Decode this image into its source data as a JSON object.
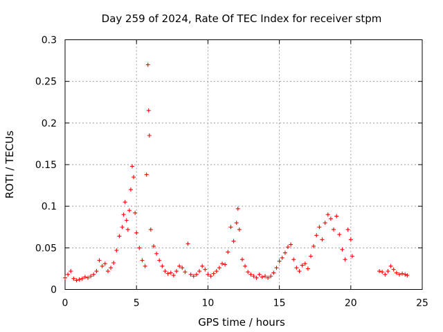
{
  "chart_data": {
    "type": "scatter",
    "title": "Day 259 of 2024, Rate Of TEC Index for receiver stpm",
    "xlabel": "GPS time / hours",
    "ylabel": "ROTI / TECUs",
    "xlim": [
      0,
      25
    ],
    "ylim": [
      0,
      0.3
    ],
    "xticks": [
      "0",
      "5",
      "10",
      "15",
      "20",
      "25"
    ],
    "yticks": [
      "0",
      "0.05",
      "0.1",
      "0.15",
      "0.2",
      "0.25",
      "0.3"
    ],
    "grid": true,
    "legend": "none",
    "marker": "+",
    "color": "#ff0000",
    "series": [
      {
        "x": [
          0.0,
          0.2,
          0.4,
          0.6,
          0.8,
          1.0,
          1.2,
          1.4,
          1.6,
          1.8,
          2.0,
          2.2,
          2.4,
          2.6,
          2.8,
          3.0,
          3.2,
          3.4,
          3.6,
          3.8,
          4.0,
          4.1,
          4.2,
          4.3,
          4.4,
          4.5,
          4.6,
          4.7,
          4.8,
          4.9,
          5.0,
          5.2,
          5.4,
          5.6,
          5.7,
          5.8,
          5.85,
          5.9,
          6.0,
          6.2,
          6.4,
          6.6,
          6.8,
          7.0,
          7.2,
          7.4,
          7.6,
          7.8,
          8.0,
          8.2,
          8.4,
          8.6,
          8.8,
          9.0,
          9.2,
          9.4,
          9.6,
          9.8,
          10.0,
          10.2,
          10.4,
          10.6,
          10.8,
          11.0,
          11.2,
          11.4,
          11.6,
          11.8,
          12.0,
          12.1,
          12.2,
          12.4,
          12.6,
          12.8,
          13.0,
          13.2,
          13.4,
          13.6,
          13.8,
          14.0,
          14.2,
          14.4,
          14.6,
          14.8,
          15.0,
          15.2,
          15.4,
          15.6,
          15.8,
          16.0,
          16.2,
          16.4,
          16.6,
          16.8,
          17.0,
          17.2,
          17.4,
          17.6,
          17.8,
          18.0,
          18.2,
          18.4,
          18.6,
          18.8,
          19.0,
          19.2,
          19.4,
          19.6,
          19.8,
          20.0,
          20.1,
          22.0,
          22.2,
          22.4,
          22.6,
          22.8,
          23.0,
          23.2,
          23.4,
          23.6,
          23.8,
          23.95
        ],
        "y": [
          0.014,
          0.018,
          0.022,
          0.013,
          0.011,
          0.012,
          0.013,
          0.015,
          0.014,
          0.016,
          0.018,
          0.022,
          0.035,
          0.028,
          0.031,
          0.022,
          0.026,
          0.032,
          0.047,
          0.064,
          0.075,
          0.09,
          0.105,
          0.083,
          0.072,
          0.095,
          0.12,
          0.148,
          0.135,
          0.092,
          0.068,
          0.05,
          0.035,
          0.028,
          0.138,
          0.27,
          0.215,
          0.185,
          0.072,
          0.052,
          0.043,
          0.035,
          0.028,
          0.022,
          0.019,
          0.02,
          0.017,
          0.022,
          0.028,
          0.026,
          0.021,
          0.055,
          0.018,
          0.016,
          0.018,
          0.022,
          0.028,
          0.024,
          0.018,
          0.016,
          0.019,
          0.022,
          0.026,
          0.031,
          0.03,
          0.045,
          0.075,
          0.058,
          0.08,
          0.097,
          0.072,
          0.036,
          0.028,
          0.021,
          0.018,
          0.016,
          0.014,
          0.018,
          0.015,
          0.016,
          0.014,
          0.016,
          0.02,
          0.026,
          0.034,
          0.038,
          0.044,
          0.051,
          0.054,
          0.036,
          0.026,
          0.022,
          0.029,
          0.031,
          0.025,
          0.04,
          0.052,
          0.065,
          0.075,
          0.06,
          0.08,
          0.09,
          0.085,
          0.072,
          0.088,
          0.066,
          0.048,
          0.036,
          0.072,
          0.06,
          0.04,
          0.022,
          0.021,
          0.018,
          0.022,
          0.028,
          0.024,
          0.02,
          0.018,
          0.019,
          0.018,
          0.017
        ]
      }
    ]
  }
}
